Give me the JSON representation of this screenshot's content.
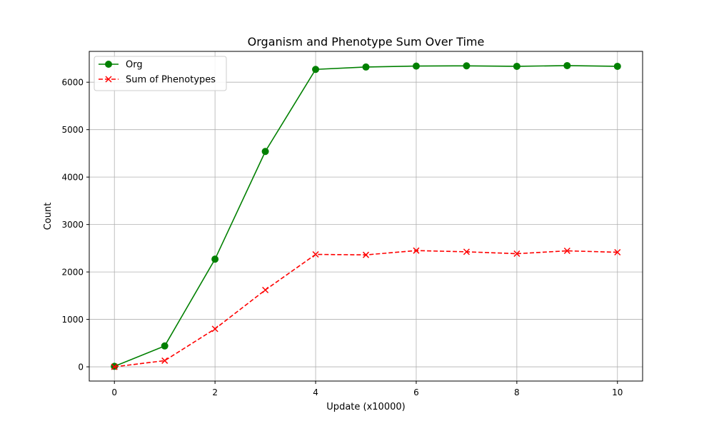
{
  "chart_data": {
    "type": "line",
    "title": "Organism and Phenotype Sum Over Time",
    "xlabel": "Update (x10000)",
    "ylabel": "Count",
    "xlim": [
      -0.5,
      10.5
    ],
    "ylim": [
      -300,
      6650
    ],
    "xticks": [
      0,
      2,
      4,
      6,
      8,
      10
    ],
    "yticks": [
      0,
      1000,
      2000,
      3000,
      4000,
      5000,
      6000
    ],
    "grid": true,
    "legend_position": "top-left",
    "x": [
      0,
      1,
      2,
      3,
      4,
      5,
      6,
      7,
      8,
      9,
      10
    ],
    "series": [
      {
        "name": "Org",
        "color": "#008000",
        "line_style": "solid",
        "marker": "circle",
        "values": [
          10,
          440,
          2270,
          4540,
          6270,
          6320,
          6340,
          6345,
          6335,
          6350,
          6335
        ]
      },
      {
        "name": "Sum of Phenotypes",
        "color": "#ff0000",
        "line_style": "dashed",
        "marker": "x",
        "values": [
          0,
          130,
          800,
          1620,
          2370,
          2360,
          2450,
          2425,
          2385,
          2445,
          2415
        ]
      }
    ]
  }
}
